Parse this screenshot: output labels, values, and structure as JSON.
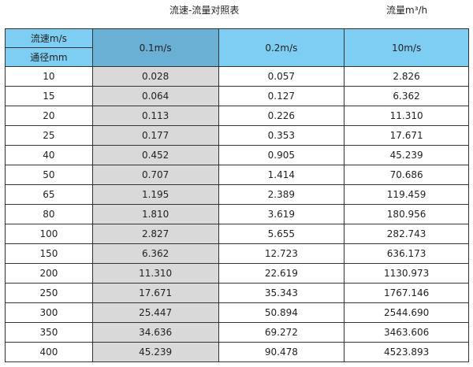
{
  "title": "流速-流量对照表",
  "unit_label": "流量m³/h",
  "header": {
    "velocity_label": "流速m/s",
    "diameter_label": "通径mm",
    "columns": [
      "0.1m/s",
      "0.2m/s",
      "10m/s"
    ]
  },
  "colors": {
    "header": "#7ecef4",
    "highlight_header": "#6aafd4",
    "highlight_column": "#d9d9d9"
  },
  "rows": [
    [
      "10",
      "0.028",
      "0.057",
      "2.826"
    ],
    [
      "15",
      "0.064",
      "0.127",
      "6.362"
    ],
    [
      "20",
      "0.113",
      "0.226",
      "11.310"
    ],
    [
      "25",
      "0.177",
      "0.353",
      "17.671"
    ],
    [
      "40",
      "0.452",
      "0.905",
      "45.239"
    ],
    [
      "50",
      "0.707",
      "1.414",
      "70.686"
    ],
    [
      "65",
      "1.195",
      "2.389",
      "119.459"
    ],
    [
      "80",
      "1.810",
      "3.619",
      "180.956"
    ],
    [
      "100",
      "2.827",
      "5.655",
      "282.743"
    ],
    [
      "150",
      "6.362",
      "12.723",
      "636.173"
    ],
    [
      "200",
      "11.310",
      "22.619",
      "1130.973"
    ],
    [
      "250",
      "17.671",
      "35.343",
      "1767.146"
    ],
    [
      "300",
      "25.447",
      "50.894",
      "2544.690"
    ],
    [
      "350",
      "34.636",
      "69.272",
      "3463.606"
    ],
    [
      "400",
      "45.239",
      "90.478",
      "4523.893"
    ]
  ]
}
